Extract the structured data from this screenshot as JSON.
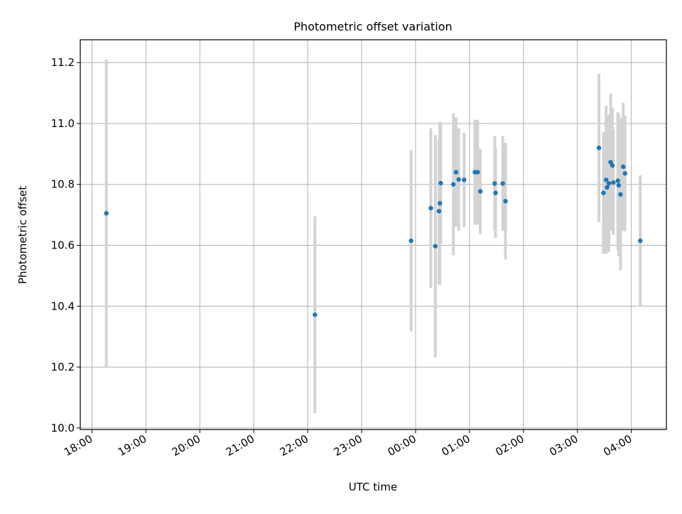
{
  "chart_data": {
    "type": "scatter",
    "title": "Photometric offset variation",
    "xlabel": "UTC time",
    "ylabel": "Photometric offset",
    "x_axis_kind": "time",
    "xlim": [
      "17:47",
      "04:39"
    ],
    "ylim": [
      9.995,
      11.275
    ],
    "grid": true,
    "x_ticks": [
      "18:00",
      "19:00",
      "20:00",
      "21:00",
      "22:00",
      "23:00",
      "00:00",
      "01:00",
      "02:00",
      "03:00",
      "04:00"
    ],
    "y_ticks": [
      "10.0",
      "10.2",
      "10.4",
      "10.6",
      "10.8",
      "11.0",
      "11.2"
    ],
    "error_bar_color": "#d3d3d3",
    "point_color": "#1f77b4",
    "points": [
      {
        "t": "18:16",
        "y": 10.705,
        "err": 0.505
      },
      {
        "t": "22:08",
        "y": 10.372,
        "err": 0.323
      },
      {
        "t": "23:55",
        "y": 10.615,
        "err": 0.298
      },
      {
        "t": "00:17",
        "y": 10.722,
        "err": 0.262
      },
      {
        "t": "00:22",
        "y": 10.597,
        "err": 0.365
      },
      {
        "t": "00:26",
        "y": 10.712,
        "err": 0.238
      },
      {
        "t": "00:27",
        "y": 10.738,
        "err": 0.268
      },
      {
        "t": "00:28",
        "y": 10.804,
        "err": 0.2
      },
      {
        "t": "00:42",
        "y": 10.8,
        "err": 0.233
      },
      {
        "t": "00:45",
        "y": 10.84,
        "err": 0.18
      },
      {
        "t": "00:48",
        "y": 10.816,
        "err": 0.168
      },
      {
        "t": "00:54",
        "y": 10.815,
        "err": 0.155
      },
      {
        "t": "01:06",
        "y": 10.84,
        "err": 0.172
      },
      {
        "t": "01:09",
        "y": 10.84,
        "err": 0.172
      },
      {
        "t": "01:12",
        "y": 10.777,
        "err": 0.14
      },
      {
        "t": "01:28",
        "y": 10.803,
        "err": 0.155
      },
      {
        "t": "01:29",
        "y": 10.772,
        "err": 0.148
      },
      {
        "t": "01:37",
        "y": 10.803,
        "err": 0.155
      },
      {
        "t": "01:40",
        "y": 10.745,
        "err": 0.192
      },
      {
        "t": "03:24",
        "y": 10.92,
        "err": 0.243
      },
      {
        "t": "03:29",
        "y": 10.772,
        "err": 0.2
      },
      {
        "t": "03:32",
        "y": 10.815,
        "err": 0.243
      },
      {
        "t": "03:33",
        "y": 10.79,
        "err": 0.2
      },
      {
        "t": "03:35",
        "y": 10.803,
        "err": 0.225
      },
      {
        "t": "03:37",
        "y": 10.873,
        "err": 0.225
      },
      {
        "t": "03:39",
        "y": 10.862,
        "err": 0.19
      },
      {
        "t": "03:40",
        "y": 10.806,
        "err": 0.172
      },
      {
        "t": "03:45",
        "y": 10.812,
        "err": 0.225
      },
      {
        "t": "03:46",
        "y": 10.797,
        "err": 0.233
      },
      {
        "t": "03:48",
        "y": 10.767,
        "err": 0.25
      },
      {
        "t": "03:51",
        "y": 10.858,
        "err": 0.21
      },
      {
        "t": "03:53",
        "y": 10.836,
        "err": 0.19
      },
      {
        "t": "04:10",
        "y": 10.615,
        "err": 0.215
      }
    ]
  }
}
